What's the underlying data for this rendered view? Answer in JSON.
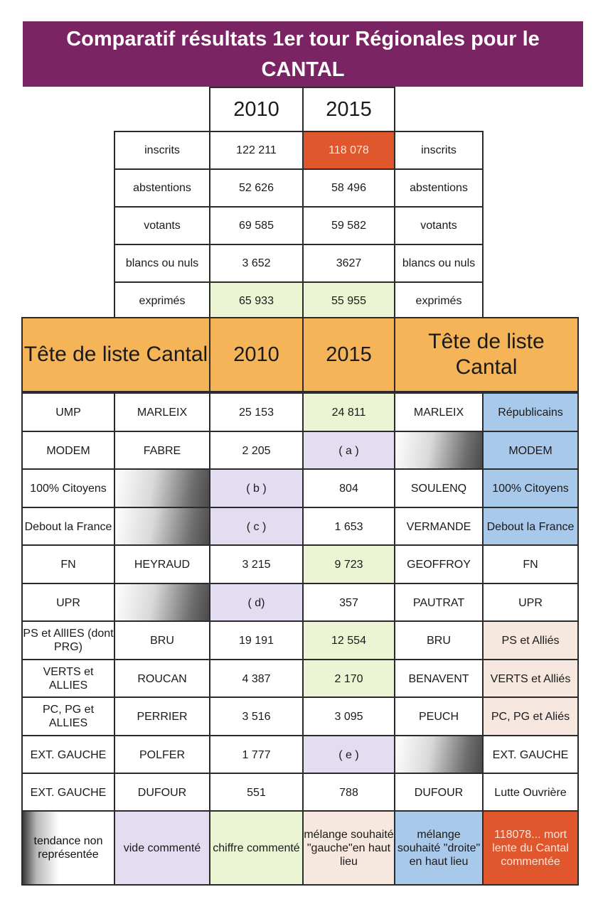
{
  "title": "Comparatif résultats 1er tour Régionales pour le CANTAL",
  "years": [
    "2010",
    "2015"
  ],
  "stats": [
    {
      "label": "inscrits",
      "v2010": "122 211",
      "v2015": "118 078"
    },
    {
      "label": "abstentions",
      "v2010": "52 626",
      "v2015": "58 496"
    },
    {
      "label": "votants",
      "v2010": "69 585",
      "v2015": "59 582"
    },
    {
      "label": "blancs ou nuls",
      "v2010": "3 652",
      "v2015": "3627"
    },
    {
      "label": "exprimés",
      "v2010": "65 933",
      "v2015": "55 955"
    }
  ],
  "list_header": "Tête de liste Cantal",
  "rows": [
    {
      "party_2010": "UMP",
      "head_2010": "MARLEIX",
      "v2010": "25 153",
      "v2015": "24 811",
      "head_2015": "MARLEIX",
      "party_2015": "Républicains"
    },
    {
      "party_2010": "MODEM",
      "head_2010": "FABRE",
      "v2010": "2 205",
      "v2015": "( a )",
      "head_2015": "",
      "party_2015": "MODEM"
    },
    {
      "party_2010": "100% Citoyens",
      "head_2010": "",
      "v2010": "( b )",
      "v2015": "804",
      "head_2015": "SOULENQ",
      "party_2015": "100% Citoyens"
    },
    {
      "party_2010": "Debout la France",
      "head_2010": "",
      "v2010": "( c )",
      "v2015": "1 653",
      "head_2015": "VERMANDE",
      "party_2015": "Debout la France"
    },
    {
      "party_2010": "FN",
      "head_2010": "HEYRAUD",
      "v2010": "3 215",
      "v2015": "9 723",
      "head_2015": "GEOFFROY",
      "party_2015": "FN"
    },
    {
      "party_2010": "UPR",
      "head_2010": "",
      "v2010": "( d)",
      "v2015": "357",
      "head_2015": "PAUTRAT",
      "party_2015": "UPR"
    },
    {
      "party_2010": "PS et AllIES (dont PRG)",
      "head_2010": "BRU",
      "v2010": "19 191",
      "v2015": "12 554",
      "head_2015": "BRU",
      "party_2015": "PS et Alliés"
    },
    {
      "party_2010": "VERTS et ALLIES",
      "head_2010": "ROUCAN",
      "v2010": "4 387",
      "v2015": "2 170",
      "head_2015": "BENAVENT",
      "party_2015": "VERTS et Alliés"
    },
    {
      "party_2010": "PC, PG et ALLIES",
      "head_2010": "PERRIER",
      "v2010": "3 516",
      "v2015": "3 095",
      "head_2015": "PEUCH",
      "party_2015": "PC, PG et Aliés"
    },
    {
      "party_2010": "EXT. GAUCHE",
      "head_2010": "POLFER",
      "v2010": "1 777",
      "v2015": "( e )",
      "head_2015": "",
      "party_2015": "EXT. GAUCHE"
    },
    {
      "party_2010": "EXT. GAUCHE",
      "head_2010": "DUFOUR",
      "v2010": "551",
      "v2015": "788",
      "head_2015": "DUFOUR",
      "party_2015": "Lutte Ouvrière"
    }
  ],
  "legend": [
    "tendance non représentée",
    "vide commenté",
    "chiffre commenté",
    "mélange souhaité \"gauche\"en haut lieu",
    "mélange souhaité \"droite\" en haut lieu",
    "118078... mort lente du Cantal commentée"
  ],
  "colors": {
    "banner": "#7b2463",
    "header_orange": "#f4b457",
    "light_green": "#ebf4d3",
    "light_purple": "#e4dcf0",
    "light_blue": "#a9c9ea",
    "light_pink": "#f6e8df",
    "red": "#e0562d"
  }
}
